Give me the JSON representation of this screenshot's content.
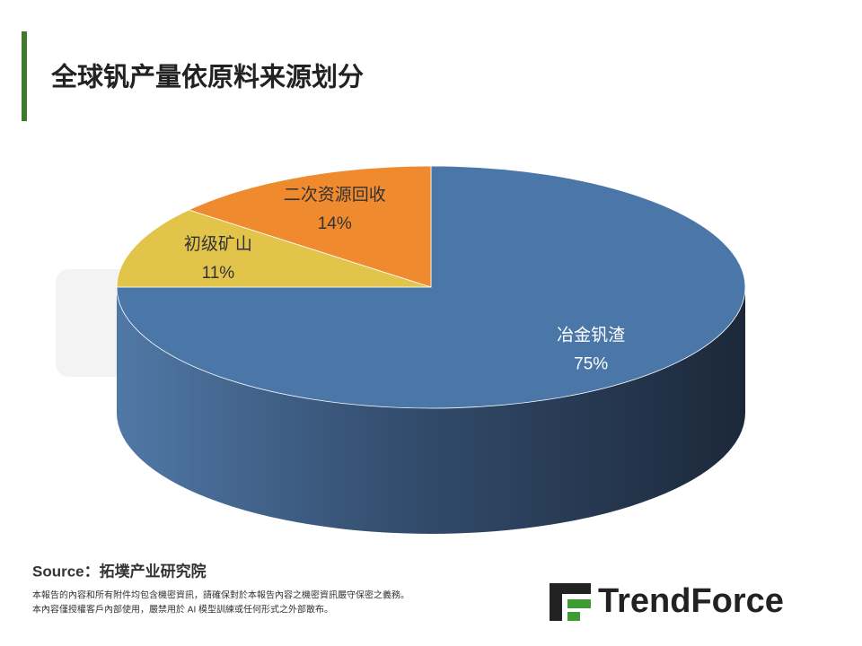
{
  "chart_data": {
    "type": "pie",
    "title": "全球钒产量依原料来源划分",
    "categories": [
      "冶金钒渣",
      "初级矿山",
      "二次资源回收"
    ],
    "values": [
      75,
      11,
      14
    ],
    "value_labels": [
      "75%",
      "11%",
      "14%"
    ],
    "colors": [
      "#4a76a8",
      "#e3c44a",
      "#ef8a2e"
    ]
  },
  "source": "Source：拓墣产业研究院",
  "disclaimer": [
    "本報告的內容和所有附件均包含機密資訊，請確保對於本報告內容之機密資訊嚴守保密之義務。",
    "本內容僅授權客戶內部使用，嚴禁用於 AI 模型訓練或任何形式之外部散布。"
  ],
  "logo": "TrendForce"
}
